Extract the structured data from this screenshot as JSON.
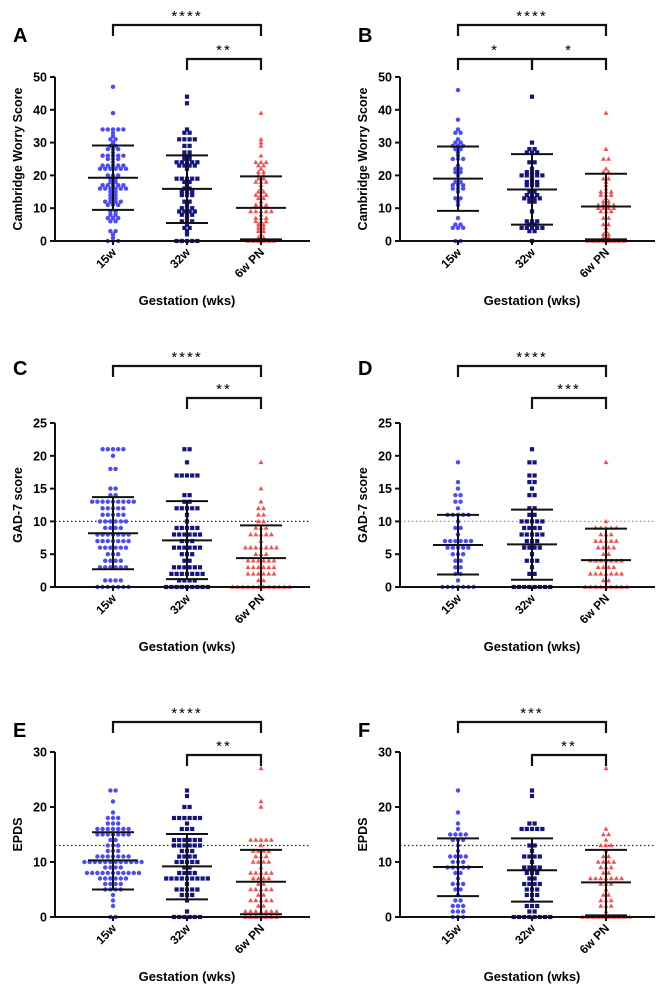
{
  "colors": {
    "g15w": "#4a4aff",
    "g32w": "#15157f",
    "g6w": "#ff4a4a",
    "axis": "#111111",
    "bar": "#111111"
  },
  "chart_data": [
    {
      "type": "scatter",
      "panel": "A",
      "ylabel": "Cambridge Worry  Score",
      "xlabel": "Gestation (wks)",
      "ylim": [
        0,
        50
      ],
      "yticks": [
        0,
        10,
        20,
        30,
        40,
        50
      ],
      "categories": [
        "15w",
        "32w",
        "6w PN"
      ],
      "threshold": null,
      "groups": [
        {
          "mean": 19.3,
          "lo": 9.5,
          "hi": 29.1,
          "n": 85,
          "max": 47
        },
        {
          "mean": 15.9,
          "lo": 5.5,
          "hi": 26.1,
          "n": 70,
          "max": 44
        },
        {
          "mean": 10.1,
          "lo": 0.5,
          "hi": 19.7,
          "n": 60,
          "max": 39
        }
      ],
      "significance": [
        {
          "from": 0,
          "to": 2,
          "label": "****",
          "tier": 1
        },
        {
          "from": 1,
          "to": 2,
          "label": "**",
          "tier": 2
        }
      ]
    },
    {
      "type": "scatter",
      "panel": "B",
      "ylabel": "Cambridge Worry  Score",
      "xlabel": "Gestation (wks)",
      "ylim": [
        0,
        50
      ],
      "yticks": [
        0,
        10,
        20,
        30,
        40,
        50
      ],
      "categories": [
        "15w",
        "32w",
        "6w PN"
      ],
      "threshold": null,
      "groups": [
        {
          "mean": 19.0,
          "lo": 9.2,
          "hi": 28.8,
          "n": 45,
          "max": 46
        },
        {
          "mean": 15.7,
          "lo": 5.0,
          "hi": 26.5,
          "n": 50,
          "max": 44
        },
        {
          "mean": 10.5,
          "lo": 0.5,
          "hi": 20.5,
          "n": 50,
          "max": 39
        }
      ],
      "significance": [
        {
          "from": 0,
          "to": 2,
          "label": "****",
          "tier": 1
        },
        {
          "from": 0,
          "to": 1,
          "label": "*",
          "tier": 2
        },
        {
          "from": 1,
          "to": 2,
          "label": "*",
          "tier": 2
        }
      ]
    },
    {
      "type": "scatter",
      "panel": "C",
      "ylabel": "GAD-7 score",
      "xlabel": "Gestation (wks)",
      "ylim": [
        0,
        25
      ],
      "yticks": [
        0,
        5,
        10,
        15,
        20,
        25
      ],
      "categories": [
        "15w",
        "32w",
        "6w PN"
      ],
      "threshold": 10,
      "groups": [
        {
          "mean": 8.2,
          "lo": 2.7,
          "hi": 13.7,
          "n": 85,
          "max": 21
        },
        {
          "mean": 7.1,
          "lo": 1.2,
          "hi": 13.1,
          "n": 70,
          "max": 21
        },
        {
          "mean": 4.4,
          "lo": 0,
          "hi": 9.4,
          "n": 60,
          "max": 19
        }
      ],
      "significance": [
        {
          "from": 0,
          "to": 2,
          "label": "****",
          "tier": 1
        },
        {
          "from": 1,
          "to": 2,
          "label": "**",
          "tier": 2
        }
      ]
    },
    {
      "type": "scatter",
      "panel": "D",
      "ylabel": "GAD-7 score",
      "xlabel": "Gestation (wks)",
      "ylim": [
        0,
        25
      ],
      "yticks": [
        0,
        5,
        10,
        15,
        20,
        25
      ],
      "categories": [
        "15w",
        "32w",
        "6w PN"
      ],
      "threshold": 10,
      "groups": [
        {
          "mean": 6.4,
          "lo": 1.9,
          "hi": 11.0,
          "n": 45,
          "max": 19
        },
        {
          "mean": 6.5,
          "lo": 1.1,
          "hi": 11.8,
          "n": 50,
          "max": 21
        },
        {
          "mean": 4.1,
          "lo": 0,
          "hi": 8.9,
          "n": 50,
          "max": 19
        }
      ],
      "significance": [
        {
          "from": 0,
          "to": 2,
          "label": "****",
          "tier": 1
        },
        {
          "from": 1,
          "to": 2,
          "label": "***",
          "tier": 2
        }
      ]
    },
    {
      "type": "scatter",
      "panel": "E",
      "ylabel": "EPDS",
      "xlabel": "Gestation (wks)",
      "ylim": [
        0,
        30
      ],
      "yticks": [
        0,
        10,
        20,
        30
      ],
      "categories": [
        "15w",
        "32w",
        "6w PN"
      ],
      "threshold": 13,
      "groups": [
        {
          "mean": 10.3,
          "lo": 5.0,
          "hi": 15.4,
          "n": 85,
          "max": 23
        },
        {
          "mean": 9.2,
          "lo": 3.2,
          "hi": 15.1,
          "n": 70,
          "max": 23
        },
        {
          "mean": 6.4,
          "lo": 0.5,
          "hi": 12.2,
          "n": 60,
          "max": 27
        }
      ],
      "significance": [
        {
          "from": 0,
          "to": 2,
          "label": "****",
          "tier": 1
        },
        {
          "from": 1,
          "to": 2,
          "label": "**",
          "tier": 2
        }
      ]
    },
    {
      "type": "scatter",
      "panel": "F",
      "ylabel": "EPDS",
      "xlabel": "Gestation (wks)",
      "ylim": [
        0,
        30
      ],
      "yticks": [
        0,
        10,
        20,
        30
      ],
      "categories": [
        "15w",
        "32w",
        "6w PN"
      ],
      "threshold": 13,
      "groups": [
        {
          "mean": 9.1,
          "lo": 3.8,
          "hi": 14.3,
          "n": 45,
          "max": 23
        },
        {
          "mean": 8.5,
          "lo": 2.8,
          "hi": 14.3,
          "n": 50,
          "max": 23
        },
        {
          "mean": 6.3,
          "lo": 0.3,
          "hi": 12.2,
          "n": 50,
          "max": 27
        }
      ],
      "significance": [
        {
          "from": 0,
          "to": 2,
          "label": "***",
          "tier": 1
        },
        {
          "from": 1,
          "to": 2,
          "label": "**",
          "tier": 2
        }
      ]
    }
  ]
}
